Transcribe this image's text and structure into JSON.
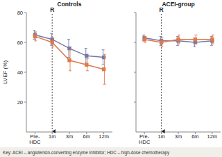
{
  "chart_data": [
    {
      "type": "line",
      "title": "Controls",
      "y_label": "LVEF (%)",
      "categories": [
        "Pre-HDC",
        "1m",
        "3m",
        "6m",
        "12m"
      ],
      "series": [
        {
          "color": "#7478a6",
          "marker": "square",
          "values": [
            65,
            62,
            56,
            51,
            50
          ],
          "errors": [
            3,
            4,
            6,
            5,
            5
          ]
        },
        {
          "color": "#e0784a",
          "marker": "square",
          "values": [
            64,
            60,
            48,
            45,
            42
          ],
          "errors": [
            3,
            3,
            7,
            4,
            10
          ]
        }
      ],
      "ylim": [
        0,
        80
      ],
      "yticks": [
        20,
        40,
        60,
        80
      ],
      "grid": false,
      "annotations": [
        {
          "text": "R",
          "x": "1m"
        }
      ]
    },
    {
      "type": "line",
      "title": "ACEI-group",
      "categories": [
        "Pre-HDC",
        "1m",
        "3m",
        "6m",
        "12m"
      ],
      "series": [
        {
          "color": "#7478a6",
          "marker": "square",
          "values": [
            63,
            61,
            61,
            60,
            61
          ],
          "errors": [
            2,
            3,
            3,
            3,
            3
          ]
        },
        {
          "color": "#e0784a",
          "marker": "square",
          "values": [
            62,
            60,
            62,
            62,
            62
          ],
          "errors": [
            2,
            3,
            3,
            3,
            3
          ]
        }
      ],
      "ylim": [
        0,
        80
      ],
      "yticks": [
        20,
        40,
        60,
        80
      ],
      "grid": false,
      "tick_labels": "x",
      "annotations": [
        {
          "text": "R",
          "x": "1m"
        }
      ]
    }
  ],
  "footnote": "Key: ACEI – angiotensin-converting enzyme inhibitor; HDC – high-dose chemotherapy"
}
